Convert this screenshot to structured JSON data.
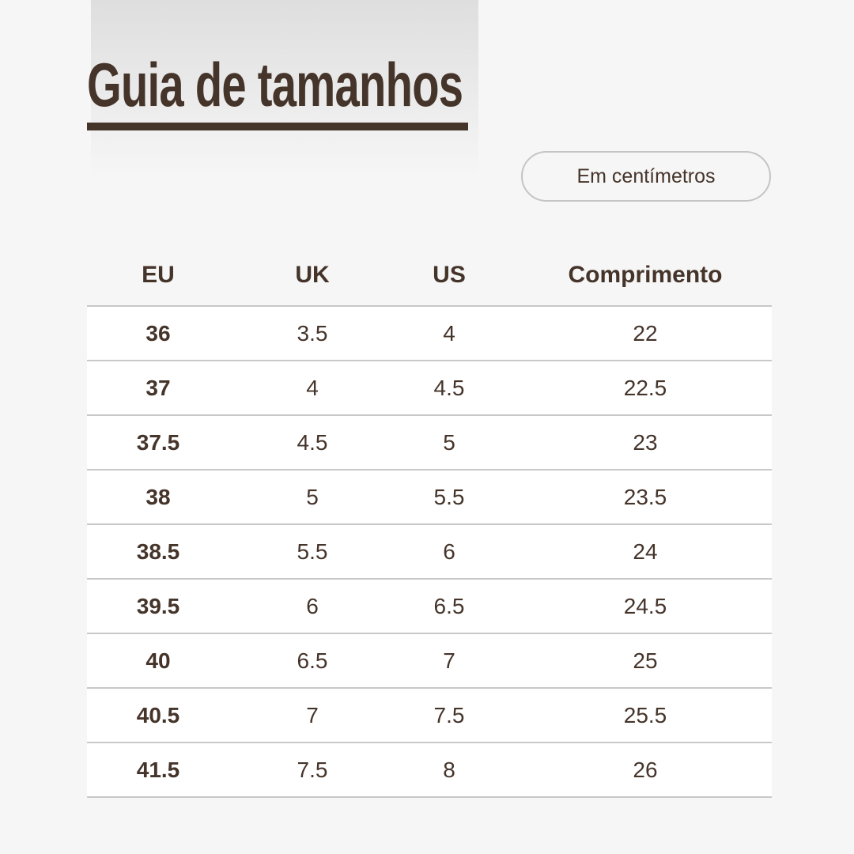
{
  "header": {
    "title": "Guia de tamanhos",
    "badge": "Em centímetros"
  },
  "table": {
    "columns": [
      "EU",
      "UK",
      "US",
      "Comprimento"
    ],
    "rows": [
      [
        "36",
        "3.5",
        "4",
        "22"
      ],
      [
        "37",
        "4",
        "4.5",
        "22.5"
      ],
      [
        "37.5",
        "4.5",
        "5",
        "23"
      ],
      [
        "38",
        "5",
        "5.5",
        "23.5"
      ],
      [
        "38.5",
        "5.5",
        "6",
        "24"
      ],
      [
        "39.5",
        "6",
        "6.5",
        "24.5"
      ],
      [
        "40",
        "6.5",
        "7",
        "25"
      ],
      [
        "40.5",
        "7",
        "7.5",
        "25.5"
      ],
      [
        "41.5",
        "7.5",
        "8",
        "26"
      ]
    ]
  }
}
